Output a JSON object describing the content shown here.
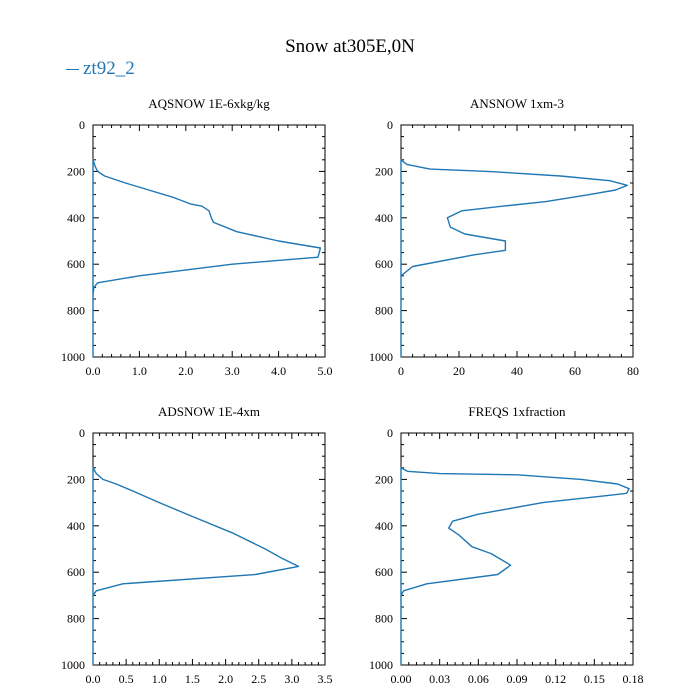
{
  "title": "Snow at305E,0N",
  "legend": [
    {
      "name": "zt92_2",
      "color": "#1f77b4"
    }
  ],
  "chart_data": [
    {
      "type": "line",
      "title": "AQSNOW  1E-6xkg/kg",
      "xlim": [
        0,
        5.0
      ],
      "ylim": [
        1000,
        0
      ],
      "xticks": [
        "0.0",
        "1.0",
        "2.0",
        "3.0",
        "4.0",
        "5.0"
      ],
      "xtick_values": [
        0,
        1,
        2,
        3,
        4,
        5
      ],
      "yticks": [
        "0",
        "200",
        "400",
        "600",
        "800",
        "1000"
      ],
      "yticks_values": [
        0,
        200,
        400,
        600,
        800,
        1000
      ],
      "series": [
        {
          "name": "zt92_2",
          "x": [
            0,
            0,
            0.05,
            0.1,
            0.25,
            0.7,
            1.2,
            1.7,
            2.1,
            2.35,
            2.5,
            2.55,
            2.6,
            3.1,
            4.0,
            4.9,
            4.85,
            3.0,
            1.0,
            0.1,
            0.02,
            0,
            0
          ],
          "y": [
            1000,
            150,
            180,
            200,
            220,
            250,
            280,
            310,
            340,
            350,
            370,
            400,
            420,
            460,
            500,
            530,
            570,
            600,
            650,
            680,
            700,
            730,
            1000
          ]
        }
      ]
    },
    {
      "type": "line",
      "title": "ANSNOW  1xm-3",
      "xlim": [
        0,
        80
      ],
      "ylim": [
        1000,
        0
      ],
      "xticks": [
        "0",
        "20",
        "40",
        "60",
        "80"
      ],
      "xtick_values": [
        0,
        20,
        40,
        60,
        80
      ],
      "yticks": [
        "0",
        "200",
        "400",
        "600",
        "800",
        "1000"
      ],
      "yticks_values": [
        0,
        200,
        400,
        600,
        800,
        1000
      ],
      "series": [
        {
          "name": "zt92_2",
          "x": [
            0,
            0,
            2,
            10,
            30,
            55,
            72,
            78,
            74,
            65,
            50,
            35,
            21,
            16,
            17,
            22,
            36,
            36,
            25,
            4,
            0,
            0
          ],
          "y": [
            1000,
            150,
            170,
            190,
            200,
            220,
            240,
            260,
            280,
            300,
            330,
            350,
            370,
            400,
            440,
            470,
            500,
            540,
            560,
            610,
            650,
            700
          ]
        }
      ]
    },
    {
      "type": "line",
      "title": "ADSNOW  1E-4xm",
      "xlim": [
        0,
        3.5
      ],
      "ylim": [
        1000,
        0
      ],
      "xticks": [
        "0.0",
        "0.5",
        "1.0",
        "1.5",
        "2.0",
        "2.5",
        "3.0",
        "3.5"
      ],
      "xtick_values": [
        0,
        0.5,
        1.0,
        1.5,
        2.0,
        2.5,
        3.0,
        3.5
      ],
      "yticks": [
        "0",
        "200",
        "400",
        "600",
        "800",
        "1000"
      ],
      "yticks_values": [
        0,
        200,
        400,
        600,
        800,
        1000
      ],
      "series": [
        {
          "name": "zt92_2",
          "x": [
            0,
            0,
            0.05,
            0.15,
            0.35,
            0.6,
            1.0,
            1.5,
            2.1,
            2.6,
            2.85,
            3.1,
            2.45,
            0.45,
            0.05,
            0,
            0
          ],
          "y": [
            1000,
            150,
            175,
            200,
            220,
            250,
            300,
            360,
            430,
            500,
            540,
            575,
            610,
            650,
            680,
            700,
            1000
          ]
        }
      ]
    },
    {
      "type": "line",
      "title": "FREQS  1xfraction",
      "xlim": [
        0,
        0.18
      ],
      "ylim": [
        1000,
        0
      ],
      "xticks": [
        "0.00",
        "0.03",
        "0.06",
        "0.09",
        "0.12",
        "0.15",
        "0.18"
      ],
      "xtick_values": [
        0,
        0.03,
        0.06,
        0.09,
        0.12,
        0.15,
        0.18
      ],
      "yticks": [
        "0",
        "200",
        "400",
        "600",
        "800",
        "1000"
      ],
      "yticks_values": [
        0,
        200,
        400,
        600,
        800,
        1000
      ],
      "series": [
        {
          "name": "zt92_2",
          "x": [
            0,
            0,
            0.005,
            0.03,
            0.09,
            0.14,
            0.168,
            0.177,
            0.175,
            0.16,
            0.11,
            0.06,
            0.04,
            0.037,
            0.045,
            0.055,
            0.07,
            0.085,
            0.075,
            0.02,
            0.002,
            0
          ],
          "y": [
            1000,
            150,
            165,
            175,
            180,
            200,
            220,
            240,
            260,
            270,
            300,
            350,
            380,
            410,
            440,
            490,
            520,
            570,
            610,
            650,
            680,
            700
          ]
        }
      ]
    }
  ]
}
